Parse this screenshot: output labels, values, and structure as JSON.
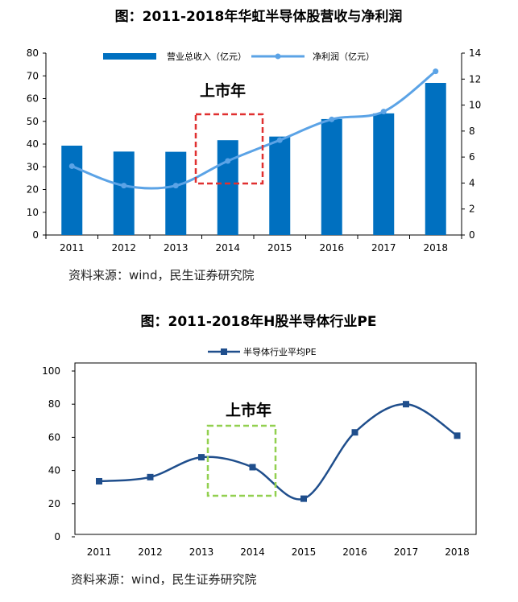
{
  "chart_data": [
    {
      "type": "bar+line",
      "title": "图：2011-2018年华虹半导体股营收与净利润",
      "categories": [
        "2011",
        "2012",
        "2013",
        "2014",
        "2015",
        "2016",
        "2017",
        "2018"
      ],
      "series": [
        {
          "name": "营业总收入（亿元）",
          "type": "bar",
          "axis": "left",
          "color": "#0070C0",
          "values": [
            39.3,
            36.7,
            36.6,
            41.7,
            43.3,
            51.0,
            53.5,
            66.9
          ]
        },
        {
          "name": "净利润（亿元）",
          "type": "line",
          "axis": "right",
          "color": "#5BA3E6",
          "values": [
            5.3,
            3.8,
            3.8,
            5.7,
            7.3,
            8.9,
            9.5,
            12.6
          ]
        }
      ],
      "ylim_left": [
        0,
        80
      ],
      "yticks_left": [
        "0",
        "10",
        "20",
        "30",
        "40",
        "50",
        "60",
        "70",
        "80"
      ],
      "ylim_right": [
        0,
        14
      ],
      "yticks_right": [
        "0",
        "2",
        "4",
        "6",
        "8",
        "10",
        "12",
        "14"
      ],
      "annotation": {
        "text": "上市年",
        "category": "2014",
        "box_color": "#E03030"
      },
      "source": "资料来源：wind，民生证券研究院"
    },
    {
      "type": "line",
      "title": "图：2011-2018年H股半导体行业PE",
      "categories": [
        "2011",
        "2012",
        "2013",
        "2014",
        "2015",
        "2016",
        "2017",
        "2018"
      ],
      "series": [
        {
          "name": "半导体行业平均PE",
          "color": "#1F4E8C",
          "values": [
            33.5,
            36,
            48,
            42,
            23,
            63,
            80,
            61
          ]
        }
      ],
      "ylim": [
        0,
        100
      ],
      "yticks": [
        "0",
        "20",
        "40",
        "60",
        "80",
        "100"
      ],
      "annotation": {
        "text": "上市年",
        "category": "2014",
        "box_color": "#92D050"
      },
      "source": "资料来源：wind，民生证券研究院"
    }
  ]
}
